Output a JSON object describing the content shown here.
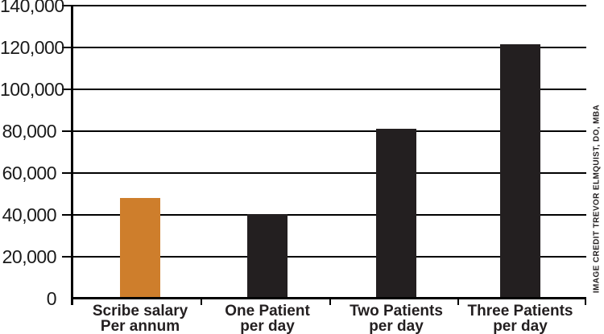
{
  "figure": {
    "background": "#ffffff",
    "credit": "IMAGE CREDIT TREVOR ELMQUIST, DO, MBA"
  },
  "chart_data": {
    "type": "bar",
    "title": "",
    "xlabel": "",
    "ylabel": "",
    "categories": [
      [
        "Scribe salary",
        "Per annum"
      ],
      [
        "One Patient",
        "per day"
      ],
      [
        "Two Patients",
        "per day"
      ],
      [
        "Three Patients",
        "per day"
      ]
    ],
    "values": [
      48000,
      40500,
      81000,
      121500
    ],
    "bar_colors": [
      "#CE7E2C",
      "#231F20",
      "#231F20",
      "#231F20"
    ],
    "ylim": [
      0,
      140000
    ],
    "grid": true,
    "legend": null,
    "axis_color": "#000000",
    "text_color": "#231F20",
    "highlight_color": "#CE7E2C",
    "y_ticks": [
      {
        "value": 0,
        "label": "0"
      },
      {
        "value": 20000,
        "label": "20,000"
      },
      {
        "value": 40000,
        "label": "40,000"
      },
      {
        "value": 60000,
        "label": "60,000"
      },
      {
        "value": 80000,
        "label": "80,000"
      },
      {
        "value": 100000,
        "label": "100,000"
      },
      {
        "value": 120000,
        "label": "120,000"
      },
      {
        "value": 140000,
        "label": "140,000"
      }
    ]
  }
}
